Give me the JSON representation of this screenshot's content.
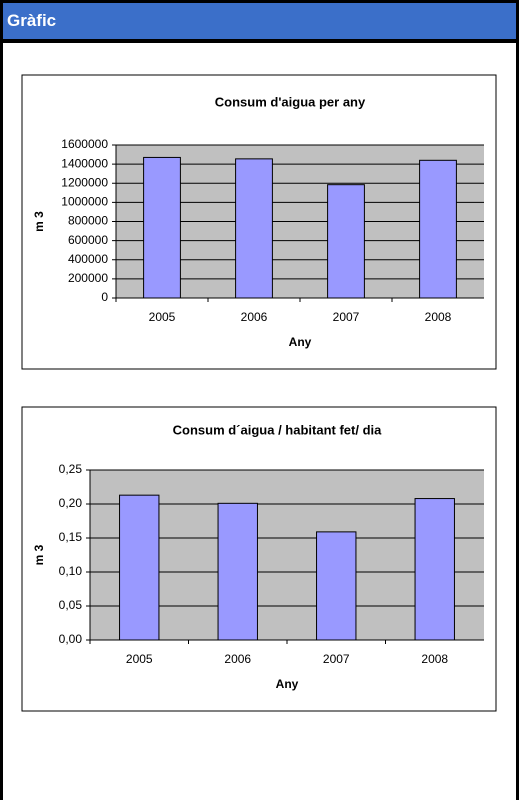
{
  "header": {
    "title": "Gràfic"
  },
  "chart_data": [
    {
      "type": "bar",
      "title": "Consum d'aigua per any",
      "x_label": "Any",
      "y_label": "m 3",
      "categories": [
        "2005",
        "2006",
        "2007",
        "2008"
      ],
      "values": [
        1470000,
        1455000,
        1185000,
        1440000
      ],
      "color": "#9999ff",
      "ylim": [
        0,
        1600000
      ],
      "yticks": [
        0,
        200000,
        400000,
        600000,
        800000,
        1000000,
        1200000,
        1400000,
        1600000
      ],
      "grid": true
    },
    {
      "type": "bar",
      "title": "Consum d´aigua / habitant fet/ dia",
      "x_label": "Any",
      "y_label": "m 3",
      "categories": [
        "2005",
        "2006",
        "2007",
        "2008"
      ],
      "values": [
        0.213,
        0.201,
        0.159,
        0.208
      ],
      "color": "#9999ff",
      "ylim": [
        0,
        0.25
      ],
      "yticks": [
        {
          "value": 0,
          "label": "0,00"
        },
        {
          "value": 0.05,
          "label": "0,05"
        },
        {
          "value": 0.1,
          "label": "0,10"
        },
        {
          "value": 0.15,
          "label": "0,15"
        },
        {
          "value": 0.2,
          "label": "0,20"
        },
        {
          "value": 0.25,
          "label": "0,25"
        }
      ],
      "grid": true
    }
  ]
}
